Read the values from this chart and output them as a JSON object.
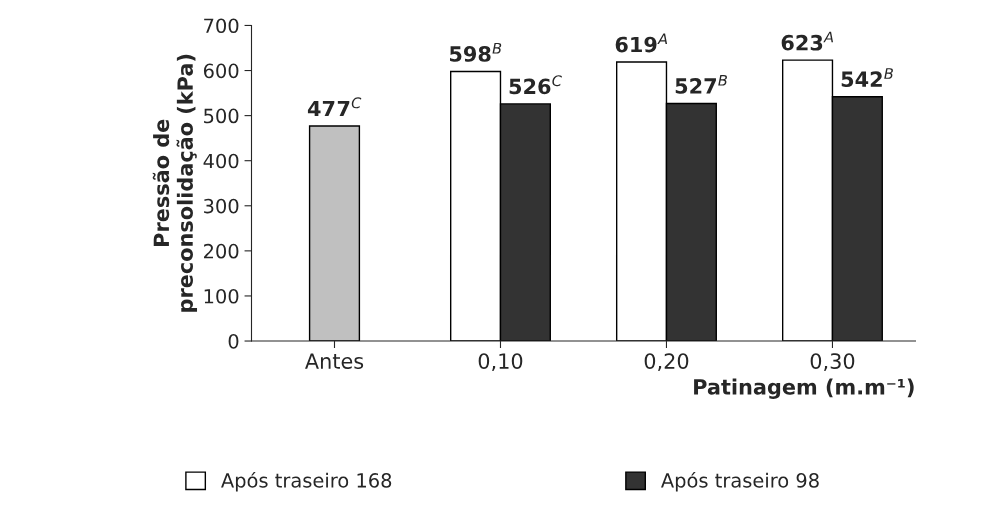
{
  "chart_data": {
    "type": "bar",
    "xlabel": "Patinagem (m.m⁻¹)",
    "ylabel": "Pressão de\npreconsolidação (kPa)",
    "categories": [
      "Antes",
      "0,10",
      "0,20",
      "0,30"
    ],
    "series": [
      {
        "name": "Após traseiro 168",
        "color": "#ffffff",
        "colors": [
          "#c0c0c0",
          "#ffffff",
          "#ffffff",
          "#ffffff"
        ],
        "values": [
          477,
          598,
          619,
          623
        ],
        "value_labels": [
          "477$^{C}$",
          "598$^{B}$",
          "619$^{A}$",
          "623$^{A}$"
        ]
      },
      {
        "name": "Após traseiro 98",
        "color": "#333333",
        "values": [
          null,
          526,
          527,
          542
        ],
        "value_labels": [
          null,
          "526$^{C}$",
          "527$^{B}$",
          "542$^{B}$"
        ]
      }
    ],
    "ylim": [
      0,
      700
    ],
    "yticks": [
      0,
      100,
      200,
      300,
      400,
      500,
      600,
      700
    ],
    "grid": false,
    "legend": "bottom"
  }
}
